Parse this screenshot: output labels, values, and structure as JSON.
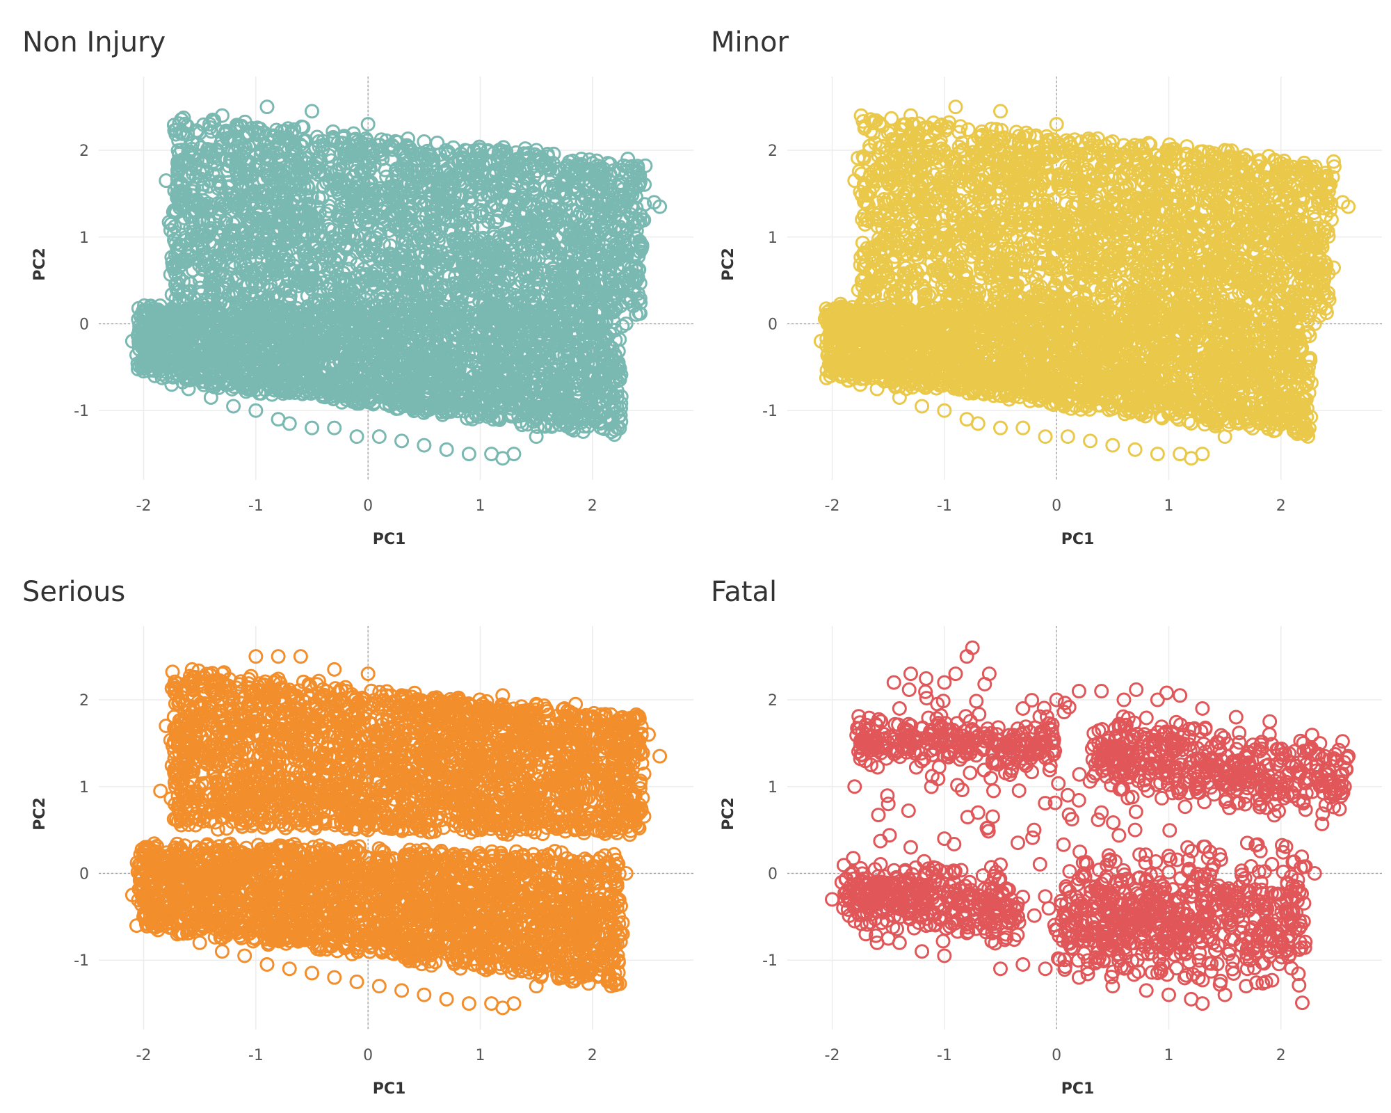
{
  "chart_data": [
    {
      "type": "scatter",
      "title": "Non Injury",
      "xlabel": "PC1",
      "ylabel": "PC2",
      "color": "#7AB8B2",
      "marker": "open-circle",
      "grid": true,
      "zero_lines": "dashed",
      "xlim": [
        -2.4,
        2.9
      ],
      "ylim": [
        -1.8,
        2.85
      ],
      "xticks": [
        -2,
        -1,
        0,
        1,
        2
      ],
      "yticks": [
        -1,
        0,
        1,
        2
      ],
      "xtick_labels": [
        "-2",
        "-1",
        "0",
        "1",
        "2"
      ],
      "ytick_labels": [
        "-1",
        "0",
        "1",
        "2"
      ],
      "density": "dense",
      "clusters": [
        {
          "x0": -1.7,
          "x1": 2.5,
          "y0": 0.1,
          "y1": 2.0,
          "xl": [
            -1.75,
            2.45
          ],
          "yt": [
            2.4,
            1.85
          ],
          "yb": [
            0.1,
            0.1
          ]
        },
        {
          "x0": -2.0,
          "x1": 2.3,
          "y0": -1.0,
          "y1": 0.2,
          "xl": [
            -2.05,
            2.25
          ],
          "yt": [
            0.2,
            0.1
          ],
          "yb": [
            -0.6,
            -1.3
          ]
        }
      ],
      "series": [
        {
          "x": [
            -2.1,
            -2.0,
            -1.9,
            -1.75,
            -1.6,
            -1.4,
            -1.2,
            -1.0,
            -0.8,
            -0.7,
            -0.5,
            -0.3,
            -0.1,
            0.1,
            0.3,
            0.5,
            0.7,
            0.9,
            1.1,
            1.2,
            1.3,
            1.5,
            1.7,
            1.9,
            2.1,
            2.3,
            2.45,
            2.55,
            2.6,
            2.4,
            -1.8,
            -1.7,
            -1.5,
            -1.3,
            -0.9,
            -0.5,
            0.0,
            0.5,
            1.0,
            1.5,
            2.0,
            2.3
          ],
          "y": [
            -0.2,
            -0.45,
            -0.6,
            -0.7,
            -0.75,
            -0.85,
            -0.95,
            -1.0,
            -1.1,
            -1.15,
            -1.2,
            -1.2,
            -1.3,
            -1.3,
            -1.35,
            -1.4,
            -1.45,
            -1.5,
            -1.5,
            -1.55,
            -1.5,
            -1.3,
            -1.1,
            -1.0,
            -0.3,
            0.0,
            1.2,
            1.4,
            1.35,
            1.7,
            1.65,
            1.5,
            2.2,
            2.4,
            2.5,
            2.45,
            2.3,
            2.1,
            2.0,
            2.0,
            1.85,
            1.75
          ]
        }
      ]
    },
    {
      "type": "scatter",
      "title": "Minor",
      "xlabel": "PC1",
      "ylabel": "PC2",
      "color": "#EAC84A",
      "marker": "open-circle",
      "grid": true,
      "zero_lines": "dashed",
      "xlim": [
        -2.4,
        2.9
      ],
      "ylim": [
        -1.8,
        2.85
      ],
      "xticks": [
        -2,
        -1,
        0,
        1,
        2
      ],
      "yticks": [
        -1,
        0,
        1,
        2
      ],
      "xtick_labels": [
        "-2",
        "-1",
        "0",
        "1",
        "2"
      ],
      "ytick_labels": [
        "-1",
        "0",
        "1",
        "2"
      ],
      "density": "dense",
      "clusters": [
        {
          "x0": -1.7,
          "x1": 2.5,
          "y0": 0.1,
          "y1": 2.0,
          "xl": [
            -1.75,
            2.45
          ],
          "yt": [
            2.4,
            1.85
          ],
          "yb": [
            0.1,
            0.1
          ]
        },
        {
          "x0": -2.0,
          "x1": 2.3,
          "y0": -1.0,
          "y1": 0.2,
          "xl": [
            -2.05,
            2.25
          ],
          "yt": [
            0.2,
            0.1
          ],
          "yb": [
            -0.6,
            -1.3
          ]
        }
      ],
      "series": [
        {
          "x": [
            -2.1,
            -2.0,
            -1.9,
            -1.75,
            -1.6,
            -1.4,
            -1.2,
            -1.0,
            -0.8,
            -0.7,
            -0.5,
            -0.3,
            -0.1,
            0.1,
            0.3,
            0.5,
            0.7,
            0.9,
            1.1,
            1.2,
            1.3,
            1.5,
            1.7,
            1.9,
            2.1,
            2.3,
            2.45,
            2.55,
            2.6,
            2.4,
            -1.8,
            -1.7,
            -1.5,
            -1.3,
            -0.9,
            -0.5,
            0.0,
            0.5,
            1.0,
            1.5,
            2.0,
            2.3
          ],
          "y": [
            -0.2,
            -0.45,
            -0.6,
            -0.7,
            -0.75,
            -0.85,
            -0.95,
            -1.0,
            -1.1,
            -1.15,
            -1.2,
            -1.2,
            -1.3,
            -1.3,
            -1.35,
            -1.4,
            -1.45,
            -1.5,
            -1.5,
            -1.55,
            -1.5,
            -1.3,
            -1.1,
            -1.0,
            -0.3,
            0.0,
            1.2,
            1.4,
            1.35,
            1.7,
            1.65,
            1.5,
            2.2,
            2.4,
            2.5,
            2.45,
            2.3,
            2.1,
            2.0,
            2.0,
            1.85,
            1.75
          ]
        }
      ]
    },
    {
      "type": "scatter",
      "title": "Serious",
      "xlabel": "PC1",
      "ylabel": "PC2",
      "color": "#F28E2B",
      "marker": "open-circle",
      "grid": true,
      "zero_lines": "dashed",
      "xlim": [
        -2.4,
        2.9
      ],
      "ylim": [
        -1.8,
        2.85
      ],
      "xticks": [
        -2,
        -1,
        0,
        1,
        2
      ],
      "yticks": [
        -1,
        0,
        1,
        2
      ],
      "xtick_labels": [
        "-2",
        "-1",
        "0",
        "1",
        "2"
      ],
      "ytick_labels": [
        "-1",
        "0",
        "1",
        "2"
      ],
      "density": "dense",
      "clusters": [
        {
          "x0": -1.7,
          "x1": 2.5,
          "y0": 0.5,
          "y1": 2.0,
          "xl": [
            -1.75,
            2.45
          ],
          "yt": [
            2.35,
            1.8
          ],
          "yb": [
            0.55,
            0.45
          ]
        },
        {
          "x0": -2.0,
          "x1": 2.3,
          "y0": -1.0,
          "y1": 0.3,
          "xl": [
            -2.05,
            2.25
          ],
          "yt": [
            0.35,
            0.2
          ],
          "yb": [
            -0.6,
            -1.3
          ]
        }
      ],
      "series": [
        {
          "x": [
            -2.1,
            -2.0,
            -1.85,
            -1.7,
            -1.5,
            -1.3,
            -1.1,
            -0.9,
            -0.7,
            -0.5,
            -0.3,
            -0.1,
            0.1,
            0.3,
            0.5,
            0.7,
            0.9,
            1.1,
            1.2,
            1.3,
            1.5,
            1.7,
            1.9,
            2.1,
            2.3,
            2.5,
            2.6,
            -1.8,
            -1.7,
            -1.5,
            -1.3,
            -1.0,
            -0.8,
            -0.6,
            -0.3,
            0.0,
            0.3,
            0.6,
            0.9,
            1.2,
            1.5,
            1.75,
            1.85,
            2.2,
            -1.85,
            -1.6,
            -0.6,
            -0.3,
            0.0
          ],
          "y": [
            -0.25,
            -0.5,
            -0.6,
            -0.7,
            -0.8,
            -0.9,
            -0.95,
            -1.05,
            -1.1,
            -1.15,
            -1.2,
            -1.25,
            -1.3,
            -1.35,
            -1.4,
            -1.45,
            -1.5,
            -1.5,
            -1.55,
            -1.5,
            -1.3,
            -1.2,
            -1.1,
            -0.25,
            0.0,
            1.6,
            1.35,
            1.7,
            1.6,
            2.2,
            2.3,
            2.5,
            2.5,
            2.5,
            2.35,
            2.3,
            2.05,
            2.0,
            1.95,
            2.05,
            1.95,
            1.9,
            1.95,
            1.6,
            0.95,
            1.0,
            0.8,
            0.6,
            0.5
          ]
        }
      ]
    },
    {
      "type": "scatter",
      "title": "Fatal",
      "xlabel": "PC1",
      "ylabel": "PC2",
      "color": "#E15759",
      "marker": "open-circle",
      "grid": true,
      "zero_lines": "dashed",
      "xlim": [
        -2.4,
        2.9
      ],
      "ylim": [
        -1.8,
        2.85
      ],
      "xticks": [
        -2,
        -1,
        0,
        1,
        2
      ],
      "yticks": [
        -1,
        0,
        1,
        2
      ],
      "xtick_labels": [
        "-2",
        "-1",
        "0",
        "1",
        "2"
      ],
      "ytick_labels": [
        "-1",
        "0",
        "1",
        "2"
      ],
      "density": "sparse",
      "clusters": [
        {
          "x0": -1.8,
          "x1": 0.0,
          "y0": 1.2,
          "y1": 1.8,
          "xl": [
            -1.8,
            0.0
          ],
          "yt": [
            1.8,
            1.7
          ],
          "yb": [
            1.3,
            1.2
          ],
          "w": 3
        },
        {
          "x0": 0.3,
          "x1": 2.6,
          "y0": 0.6,
          "y1": 1.9,
          "xl": [
            0.3,
            2.6
          ],
          "yt": [
            1.8,
            1.5
          ],
          "yb": [
            1.0,
            0.6
          ],
          "w": 5
        },
        {
          "x0": -1.9,
          "x1": -0.3,
          "y0": -0.8,
          "y1": 0.1,
          "xl": [
            -1.9,
            -0.3
          ],
          "yt": [
            0.1,
            0.0
          ],
          "yb": [
            -0.5,
            -0.8
          ],
          "w": 4
        },
        {
          "x0": 0.0,
          "x1": 2.2,
          "y0": -1.4,
          "y1": 0.3,
          "xl": [
            0.0,
            2.2
          ],
          "yt": [
            0.0,
            0.35
          ],
          "yb": [
            -1.0,
            -1.45
          ],
          "w": 7
        },
        {
          "x0": -1.6,
          "x1": 1.4,
          "y0": -0.6,
          "y1": 2.4,
          "xl": [
            -1.6,
            1.4
          ],
          "yt": [
            2.3,
            2.1
          ],
          "yb": [
            -0.7,
            -1.1
          ],
          "w": 2,
          "sparse": true
        }
      ],
      "series": [
        {
          "x": [
            -2.0,
            -1.9,
            -1.8,
            -1.7,
            -1.6,
            -1.5,
            -1.45,
            -1.4,
            -1.2,
            -1.0,
            -0.8,
            -0.75,
            -0.5,
            -0.3,
            -0.1,
            0.2,
            0.5,
            0.8,
            1.0,
            1.2,
            1.3,
            1.5,
            1.7,
            1.9,
            2.1,
            2.3,
            2.5,
            2.6,
            -1.7,
            -1.5,
            -1.4,
            -1.3,
            -1.0,
            -0.9,
            -0.6,
            -0.3,
            0.0,
            0.2,
            0.4,
            0.6,
            0.9,
            1.1,
            1.3,
            1.6,
            1.9,
            2.2,
            -1.8,
            -1.5,
            -1.3,
            -1.0,
            -0.7,
            -0.5,
            -0.2,
            0.1,
            0.4,
            0.7,
            1.0,
            1.4,
            1.7
          ],
          "y": [
            -0.3,
            -0.4,
            -0.55,
            -0.7,
            -0.8,
            -0.75,
            2.2,
            -0.8,
            -0.9,
            -0.95,
            2.5,
            2.6,
            -1.1,
            -1.05,
            -1.1,
            -1.2,
            -1.3,
            -1.35,
            -1.4,
            -1.45,
            -1.5,
            -1.4,
            -1.1,
            -0.6,
            -0.3,
            0.0,
            1.3,
            1.35,
            1.6,
            1.5,
            1.9,
            2.3,
            2.2,
            2.3,
            2.3,
            1.9,
            2.0,
            2.1,
            2.1,
            2.0,
            2.0,
            2.05,
            1.9,
            1.8,
            1.75,
            1.5,
            1.0,
            0.8,
            0.3,
            0.4,
            0.7,
            0.1,
            0.5,
            0.9,
            0.7,
            0.5,
            0.2,
            0.1,
            0.35
          ]
        }
      ]
    }
  ]
}
